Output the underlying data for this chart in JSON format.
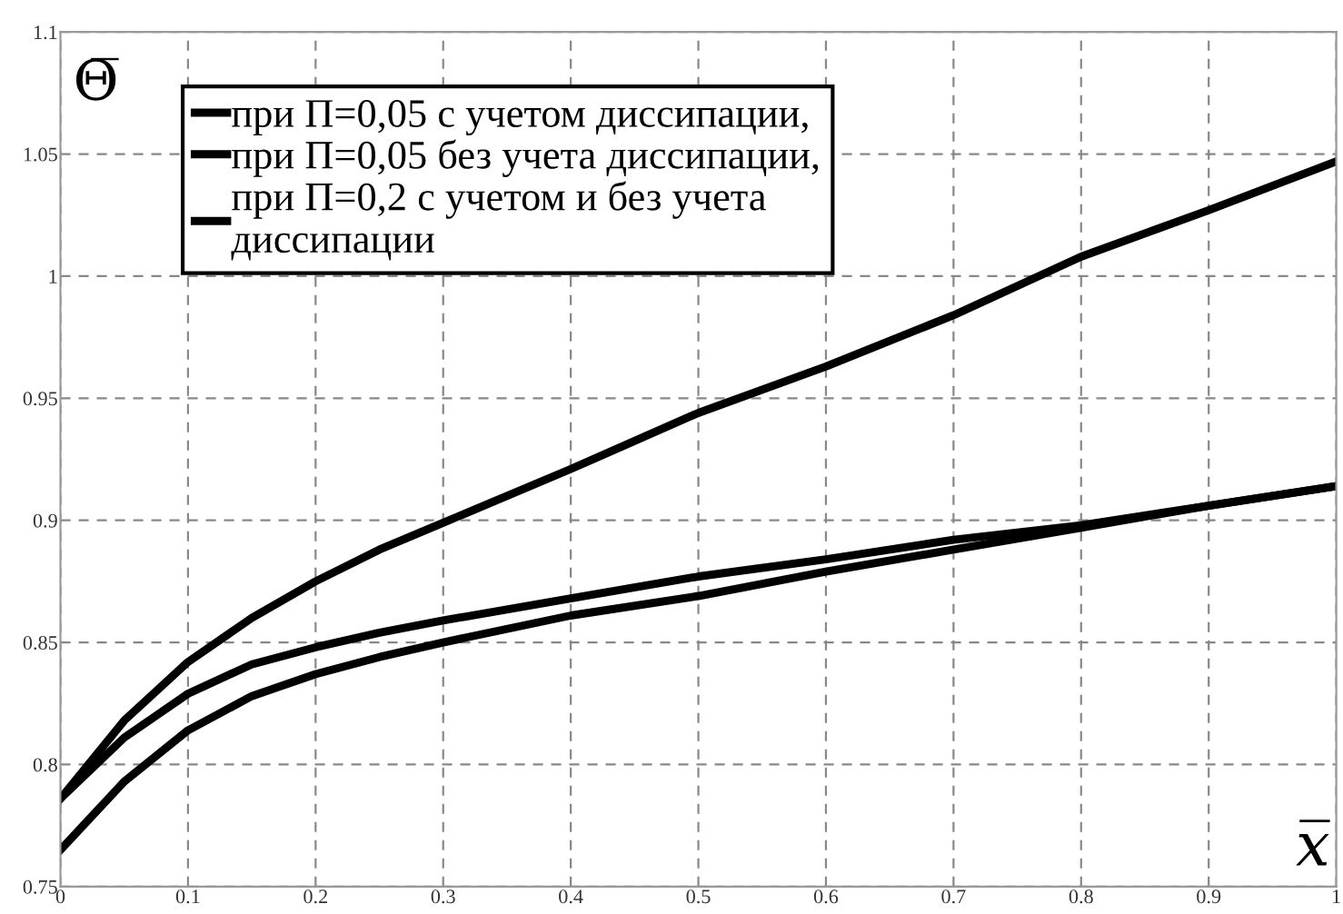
{
  "chart_data": {
    "type": "line",
    "ylabel": "Θ̅",
    "xlabel": "x̅",
    "x": [
      0,
      0.05,
      0.1,
      0.15,
      0.2,
      0.25,
      0.3,
      0.4,
      0.5,
      0.6,
      0.7,
      0.8,
      0.9,
      1
    ],
    "series": [
      {
        "name": "при П=0,05 с учетом диссипации,",
        "color": "#000000",
        "values": [
          0.786,
          0.818,
          0.842,
          0.86,
          0.875,
          0.888,
          0.899,
          0.921,
          0.944,
          0.963,
          0.984,
          1.008,
          1.027,
          1.047
        ]
      },
      {
        "name": "при П=0,05 без учета диссипации,",
        "color": "#000000",
        "values": [
          0.786,
          0.811,
          0.829,
          0.841,
          0.848,
          0.854,
          0.859,
          0.868,
          0.877,
          0.884,
          0.892,
          0.898,
          0.906,
          0.914
        ]
      },
      {
        "name": "при П=0,2 с учетом и без учета\nдиссипации",
        "color": "#000000",
        "values": [
          0.765,
          0.793,
          0.814,
          0.828,
          0.837,
          0.844,
          0.85,
          0.861,
          0.869,
          0.879,
          0.888,
          0.897,
          0.906,
          0.914
        ]
      }
    ],
    "xlim": [
      0,
      1
    ],
    "ylim": [
      0.75,
      1.1
    ],
    "xticks": [
      0,
      0.1,
      0.2,
      0.3,
      0.4,
      0.5,
      0.6,
      0.7,
      0.8,
      0.9,
      1
    ],
    "yticks": [
      0.75,
      0.8,
      0.85,
      0.9,
      0.95,
      1,
      1.05,
      1.1
    ],
    "grid": true,
    "legend": "top left",
    "marker": "none",
    "line_style": "solid"
  }
}
